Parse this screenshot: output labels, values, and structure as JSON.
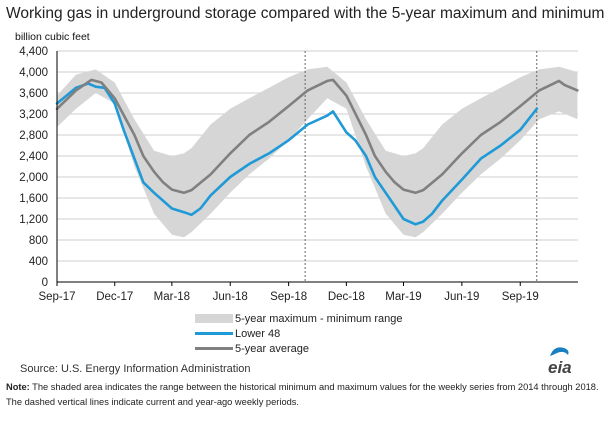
{
  "header": {
    "title": "Working gas in underground storage compared with the 5-year maximum and minimum",
    "units": "billion cubic feet"
  },
  "legend": {
    "band_label": "5-year maximum - minimum range",
    "lower48_label": "Lower 48",
    "average_label": "5-year average"
  },
  "footer": {
    "source": "Source:  U.S. Energy Information Administration",
    "note_label": "Note:",
    "note_text": " The shaded area indicates the range between the historical minimum and maximum values for the weekly series from 2014 through 2018. The dashed vertical lines indicate current and year-ago weekly periods.",
    "logo_text": "eia"
  },
  "colors": {
    "band": "#d6d6d6",
    "lower48": "#1f9ad6",
    "average": "#808080"
  },
  "chart_data": {
    "type": "line",
    "title": "Working gas in underground storage compared with the 5-year maximum and minimum",
    "ylabel": "billion cubic feet",
    "ylim": [
      0,
      4400
    ],
    "yticks": [
      0,
      400,
      800,
      1200,
      1600,
      2000,
      2400,
      2800,
      3200,
      3600,
      4000,
      4400
    ],
    "ytick_labels": [
      "0",
      "400",
      "800",
      "1,200",
      "1,600",
      "2,000",
      "2,400",
      "2,800",
      "3,200",
      "3,600",
      "4,000",
      "4,400"
    ],
    "xlim": [
      "2017-09-01",
      "2019-12-01"
    ],
    "xticks": [
      "2017-09-01",
      "2017-12-01",
      "2018-03-01",
      "2018-06-01",
      "2018-09-01",
      "2018-12-01",
      "2019-03-01",
      "2019-06-01",
      "2019-09-01"
    ],
    "xtick_labels": [
      "Sep-17",
      "Dec-17",
      "Mar-18",
      "Jun-18",
      "Sep-18",
      "Dec-18",
      "Mar-19",
      "Jun-19",
      "Sep-19"
    ],
    "grid": "horizontal",
    "legend_position": "bottom-center",
    "reference_lines": [
      "2018-09-27",
      "2019-09-27"
    ],
    "band": {
      "name": "5-year maximum - minimum range",
      "x": [
        "2017-09-01",
        "2017-10-01",
        "2017-11-01",
        "2017-12-01",
        "2018-01-01",
        "2018-02-01",
        "2018-03-01",
        "2018-03-20",
        "2018-04-01",
        "2018-05-01",
        "2018-06-01",
        "2018-07-01",
        "2018-08-01",
        "2018-09-01",
        "2018-10-01",
        "2018-11-01",
        "2018-12-01",
        "2019-01-01",
        "2019-02-01",
        "2019-03-01",
        "2019-03-20",
        "2019-04-01",
        "2019-05-01",
        "2019-06-01",
        "2019-07-01",
        "2019-08-01",
        "2019-09-01",
        "2019-10-01",
        "2019-11-01",
        "2019-11-30"
      ],
      "upper": [
        3550,
        3950,
        4050,
        3800,
        3100,
        2500,
        2400,
        2450,
        2550,
        3000,
        3300,
        3500,
        3700,
        3900,
        4050,
        4100,
        3800,
        3100,
        2500,
        2400,
        2450,
        2550,
        3000,
        3300,
        3500,
        3700,
        3900,
        4050,
        4100,
        4000
      ],
      "lower": [
        2950,
        3300,
        3600,
        3400,
        2200,
        1300,
        900,
        850,
        950,
        1300,
        1700,
        2050,
        2350,
        2700,
        3100,
        3500,
        3300,
        2200,
        1300,
        900,
        850,
        950,
        1300,
        1700,
        2050,
        2350,
        2700,
        3100,
        3250,
        3100
      ]
    },
    "series": [
      {
        "name": "Lower 48",
        "x": [
          "2017-09-01",
          "2017-10-01",
          "2017-10-20",
          "2017-11-01",
          "2017-11-15",
          "2017-12-01",
          "2017-12-15",
          "2018-01-01",
          "2018-01-15",
          "2018-02-01",
          "2018-02-15",
          "2018-03-01",
          "2018-03-20",
          "2018-04-01",
          "2018-04-15",
          "2018-05-01",
          "2018-06-01",
          "2018-07-01",
          "2018-08-01",
          "2018-09-01",
          "2018-10-01",
          "2018-11-01",
          "2018-11-10",
          "2018-12-01",
          "2018-12-15",
          "2019-01-01",
          "2019-01-15",
          "2019-02-01",
          "2019-02-15",
          "2019-03-01",
          "2019-03-20",
          "2019-04-01",
          "2019-04-15",
          "2019-05-01",
          "2019-06-01",
          "2019-07-01",
          "2019-08-01",
          "2019-09-01",
          "2019-09-27"
        ],
        "values": [
          3400,
          3700,
          3780,
          3720,
          3700,
          3400,
          2900,
          2350,
          1900,
          1700,
          1550,
          1400,
          1330,
          1280,
          1400,
          1650,
          2000,
          2250,
          2450,
          2700,
          3000,
          3170,
          3250,
          2850,
          2700,
          2400,
          2000,
          1700,
          1450,
          1200,
          1100,
          1150,
          1300,
          1550,
          1950,
          2350,
          2600,
          2900,
          3300
        ]
      },
      {
        "name": "5-year average",
        "x": [
          "2017-09-01",
          "2017-10-01",
          "2017-10-25",
          "2017-11-10",
          "2017-12-01",
          "2018-01-01",
          "2018-01-15",
          "2018-02-01",
          "2018-02-15",
          "2018-03-01",
          "2018-03-20",
          "2018-04-01",
          "2018-05-01",
          "2018-06-01",
          "2018-07-01",
          "2018-08-01",
          "2018-09-01",
          "2018-10-01",
          "2018-11-01",
          "2018-11-10",
          "2018-12-01",
          "2019-01-01",
          "2019-01-15",
          "2019-02-01",
          "2019-02-15",
          "2019-03-01",
          "2019-03-20",
          "2019-04-01",
          "2019-05-01",
          "2019-06-01",
          "2019-07-01",
          "2019-08-01",
          "2019-09-01",
          "2019-10-01",
          "2019-11-01",
          "2019-11-10",
          "2019-11-30"
        ],
        "values": [
          3300,
          3650,
          3850,
          3800,
          3500,
          2800,
          2400,
          2100,
          1900,
          1760,
          1700,
          1750,
          2050,
          2450,
          2800,
          3050,
          3350,
          3650,
          3830,
          3850,
          3550,
          2800,
          2400,
          2100,
          1900,
          1760,
          1700,
          1750,
          2050,
          2450,
          2800,
          3050,
          3350,
          3650,
          3830,
          3750,
          3650
        ]
      }
    ]
  }
}
